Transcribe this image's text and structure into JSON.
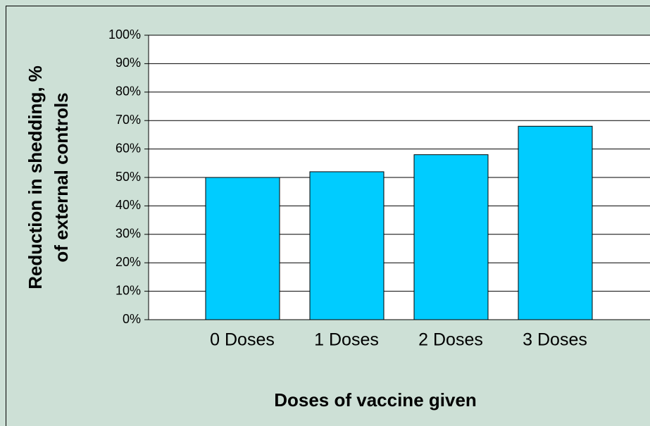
{
  "chart_data": {
    "type": "bar",
    "y_label": [
      "Reduction in shedding, %",
      "of external controls"
    ],
    "x_label": "Doses of vaccine given",
    "categories": [
      "0 Doses",
      "1 Doses",
      "2 Doses",
      "3 Doses"
    ],
    "values": [
      50,
      52,
      58,
      68
    ],
    "color": "#00ccff",
    "ylim": [
      0,
      100
    ],
    "yticks": [
      {
        "value": 0,
        "label": "0%"
      },
      {
        "value": 10,
        "label": "10%"
      },
      {
        "value": 20,
        "label": "20%"
      },
      {
        "value": 30,
        "label": "30%"
      },
      {
        "value": 40,
        "label": "40%"
      },
      {
        "value": 50,
        "label": "50%"
      },
      {
        "value": 60,
        "label": "60%"
      },
      {
        "value": 70,
        "label": "70%"
      },
      {
        "value": 80,
        "label": "80%"
      },
      {
        "value": 90,
        "label": "90%"
      },
      {
        "value": 100,
        "label": "100%"
      }
    ],
    "grid": true
  }
}
